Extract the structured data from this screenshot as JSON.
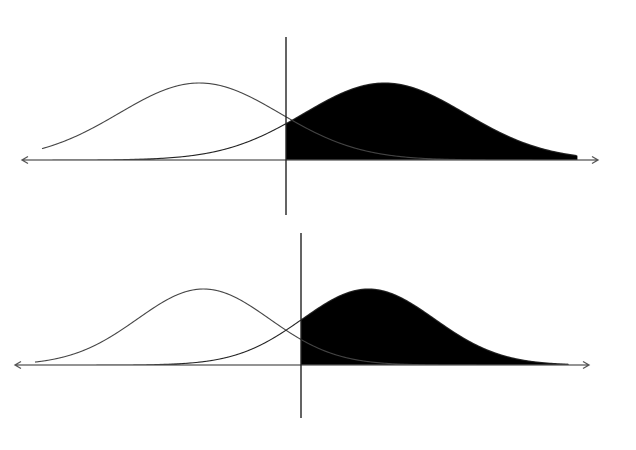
{
  "colors": {
    "background": "#ffffff",
    "curve_stroke": "#333333",
    "shaded_fill": "#000000",
    "axis_stroke": "#555555"
  },
  "panels": [
    {
      "name": "top-panel",
      "left_distribution": {
        "mean": -1.15,
        "sd": 1.0
      },
      "right_distribution": {
        "mean": 1.15,
        "sd": 1.0
      },
      "criterion": 0.0,
      "shaded_region": "right-distribution-above-criterion"
    },
    {
      "name": "bottom-panel",
      "left_distribution": {
        "mean": -1.25,
        "sd": 1.0
      },
      "right_distribution": {
        "mean": 1.25,
        "sd": 1.0
      },
      "criterion": 0.0,
      "shaded_region": "right-distribution-above-criterion"
    }
  ]
}
